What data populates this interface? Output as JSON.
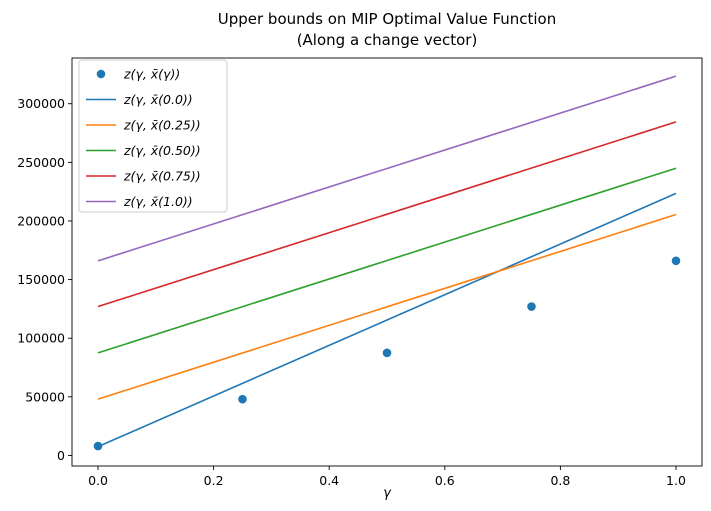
{
  "chart_data": {
    "type": "line",
    "title": "Upper bounds on MIP Optimal Value Function",
    "subtitle": "(Along a change vector)",
    "xlabel": "γ",
    "ylabel": "",
    "xlim": [
      -0.045,
      1.045
    ],
    "ylim": [
      -9000,
      339000
    ],
    "xticks": [
      0.0,
      0.2,
      0.4,
      0.6,
      0.8,
      1.0
    ],
    "xtick_labels": [
      "0.0",
      "0.2",
      "0.4",
      "0.6",
      "0.8",
      "1.0"
    ],
    "yticks": [
      0,
      50000,
      100000,
      150000,
      200000,
      250000,
      300000
    ],
    "ytick_labels": [
      "0",
      "50000",
      "100000",
      "150000",
      "200000",
      "250000",
      "300000"
    ],
    "grid": false,
    "legend_position": "top-left",
    "scatter": {
      "name": "z(γ, x̄(γ))",
      "color": "#1f77b4",
      "x": [
        0.0,
        0.25,
        0.5,
        0.75,
        1.0
      ],
      "y": [
        8000,
        48000,
        87500,
        127000,
        166000
      ]
    },
    "series": [
      {
        "name": "z(γ, x̄(0.0))",
        "color": "#1f77b4",
        "x": [
          0.0,
          1.0
        ],
        "y": [
          7500,
          223500
        ]
      },
      {
        "name": "z(γ, x̄(0.25))",
        "color": "#ff7f0e",
        "x": [
          0.0,
          1.0
        ],
        "y": [
          48000,
          205500
        ]
      },
      {
        "name": "z(γ, x̄(0.50))",
        "color": "#2ca02c",
        "x": [
          0.0,
          1.0
        ],
        "y": [
          87500,
          245000
        ]
      },
      {
        "name": "z(γ, x̄(0.75))",
        "color": "#d62728",
        "x": [
          0.0,
          1.0
        ],
        "y": [
          127000,
          284500
        ]
      },
      {
        "name": "z(γ, x̄(1.0))",
        "color": "#9467bd",
        "x": [
          0.0,
          1.0
        ],
        "y": [
          166000,
          323500
        ]
      }
    ]
  }
}
